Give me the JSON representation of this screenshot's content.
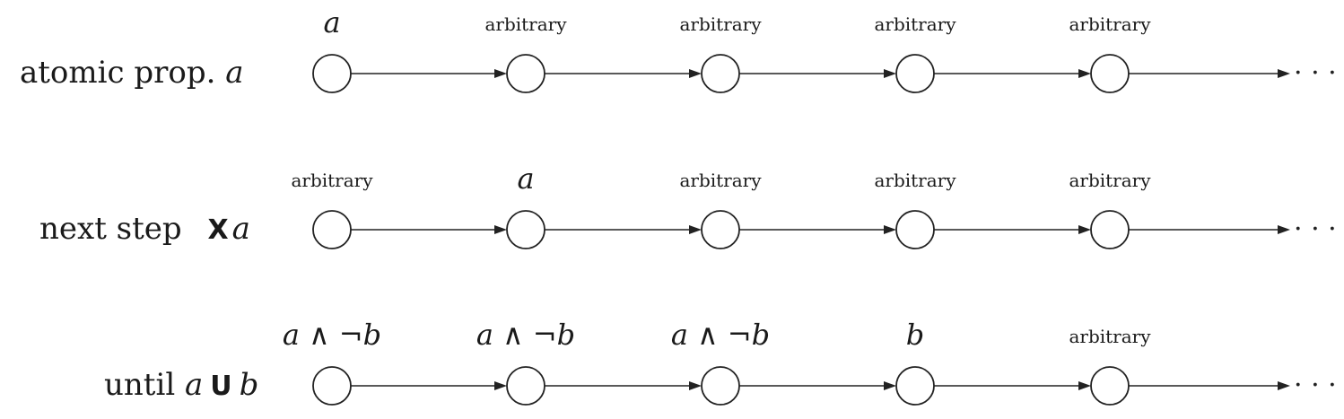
{
  "rows": [
    {
      "id": "atomic",
      "label_text": "atomic prop. ",
      "label_var": "a",
      "states": [
        {
          "label": "a",
          "kind": "math"
        },
        {
          "label": "arbitrary",
          "kind": "text"
        },
        {
          "label": "arbitrary",
          "kind": "text"
        },
        {
          "label": "arbitrary",
          "kind": "text"
        },
        {
          "label": "arbitrary",
          "kind": "text"
        }
      ],
      "continuation": "· · ·"
    },
    {
      "id": "next",
      "label_text": "next step ",
      "label_op": "X",
      "label_var": "a",
      "states": [
        {
          "label": "arbitrary",
          "kind": "text"
        },
        {
          "label": "a",
          "kind": "math"
        },
        {
          "label": "arbitrary",
          "kind": "text"
        },
        {
          "label": "arbitrary",
          "kind": "text"
        },
        {
          "label": "arbitrary",
          "kind": "text"
        }
      ],
      "continuation": "· · ·"
    },
    {
      "id": "until",
      "label_text": "until ",
      "label_var": "a",
      "label_op": "U",
      "label_var2": "b",
      "states": [
        {
          "label": "a ∧ ¬b",
          "kind": "math"
        },
        {
          "label": "a ∧ ¬b",
          "kind": "math"
        },
        {
          "label": "a ∧ ¬b",
          "kind": "math"
        },
        {
          "label": "b",
          "kind": "math"
        },
        {
          "label": "arbitrary",
          "kind": "text"
        }
      ],
      "continuation": "· · ·"
    }
  ]
}
